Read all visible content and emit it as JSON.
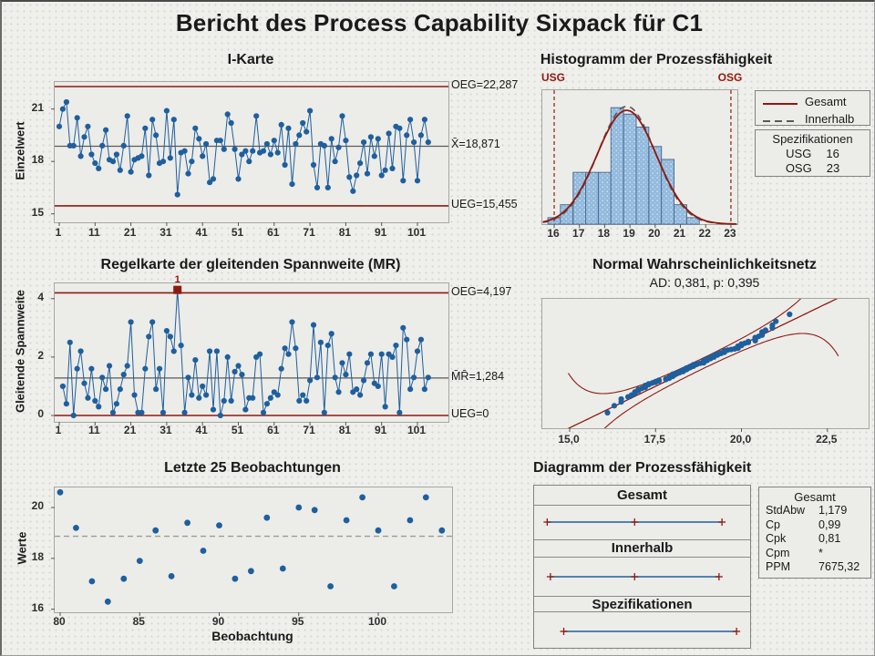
{
  "title": "Bericht des Process Capability Sixpack für C1",
  "colors": {
    "limit_red": "#8e1a0f",
    "marker_blue": "#1e5f9e",
    "bar_fill": "#93badd",
    "bar_edge": "#4a6d94",
    "center_gray": "#5a5a5a",
    "dash_gray": "#9a9a98",
    "within_gray": "#595959"
  },
  "chart_data": [
    {
      "id": "i_chart",
      "type": "line",
      "title": "I-Karte",
      "ylabel": "Einzelwert",
      "yticks": [
        15,
        18,
        21
      ],
      "xticks": [
        1,
        11,
        21,
        31,
        41,
        51,
        61,
        71,
        81,
        91,
        101
      ],
      "ylim": [
        14.5,
        22.6
      ],
      "center": 18.871,
      "ucl": 22.287,
      "lcl": 15.455,
      "ucl_label": "OEG=22,287",
      "mean_label": "X̄=18,871",
      "lcl_label": "UEG=15,455",
      "values": [
        20.0,
        21.0,
        21.4,
        18.9,
        18.9,
        20.5,
        18.3,
        19.4,
        20.0,
        18.4,
        17.9,
        17.6,
        18.9,
        19.8,
        18.1,
        18.0,
        18.4,
        17.5,
        18.9,
        20.6,
        17.4,
        18.1,
        18.2,
        18.3,
        19.9,
        17.2,
        20.4,
        19.5,
        17.9,
        18.0,
        20.9,
        18.2,
        20.4,
        16.1,
        18.5,
        18.6,
        17.3,
        18.0,
        19.9,
        19.3,
        18.3,
        19.0,
        16.8,
        17.0,
        19.2,
        19.2,
        18.7,
        20.7,
        20.2,
        18.7,
        17.0,
        18.4,
        18.6,
        18.0,
        18.6,
        20.6,
        18.5,
        18.6,
        19.0,
        18.4,
        19.2,
        18.5,
        20.1,
        17.8,
        19.9,
        16.7,
        19.0,
        19.5,
        20.2,
        19.7,
        20.9,
        17.8,
        16.5,
        19.0,
        18.9,
        16.5,
        19.3,
        18.0,
        18.8,
        20.6,
        19.2,
        17.1,
        16.3,
        17.2,
        17.9,
        19.1,
        17.3,
        19.4,
        18.3,
        19.3,
        17.2,
        17.5,
        19.6,
        17.6,
        20.0,
        19.9,
        16.9,
        19.5,
        20.4,
        19.1,
        16.9,
        19.5,
        20.4,
        19.1
      ]
    },
    {
      "id": "histogram",
      "type": "bar",
      "title": "Histogramm der Prozessfähigkeit",
      "bin_centers": [
        16,
        16.5,
        17,
        17.5,
        18,
        18.5,
        19,
        19.5,
        20,
        20.5,
        21,
        21.5
      ],
      "bin_width": 0.5,
      "counts": [
        1,
        3,
        8,
        8,
        8,
        18,
        17,
        15,
        12,
        10,
        3,
        1
      ],
      "n": 104,
      "xticks": [
        16,
        17,
        18,
        19,
        20,
        21,
        22,
        23
      ],
      "usg": 16,
      "osg": 23,
      "usg_label": "USG",
      "osg_label": "OSG",
      "overall_mean": 18.871,
      "overall_sd": 1.179,
      "within_sd": 1.139,
      "legend": {
        "overall": "Gesamt",
        "within": "Innerhalb"
      },
      "spec_box": {
        "title": "Spezifikationen",
        "rows": [
          {
            "label": "USG",
            "value": "16"
          },
          {
            "label": "OSG",
            "value": "23"
          }
        ]
      }
    },
    {
      "id": "mr_chart",
      "type": "line",
      "title": "Regelkarte der gleitenden Spannweite (MR)",
      "ylabel": "Gleitende Spannweite",
      "yticks": [
        0,
        2,
        4
      ],
      "xticks": [
        1,
        11,
        21,
        31,
        41,
        51,
        61,
        71,
        81,
        91,
        101
      ],
      "ylim": [
        -0.3,
        4.55
      ],
      "center": 1.284,
      "ucl": 4.197,
      "lcl": 0,
      "ucl_label": "OEG=4,197",
      "mean_label": "M̄R̄=1,284",
      "lcl_label": "UEG=0",
      "note": "moving ranges |x(i)-x(i-1)| of i_chart values",
      "flagged_obs": 34,
      "flag_label": "1"
    },
    {
      "id": "prob_plot",
      "type": "scatter",
      "title": "Normal Wahrscheinlichkeitsnetz",
      "subtitle": "AD: 0,381, p: 0,395",
      "ad": "0,381",
      "p": "0,395",
      "xticks": [
        "15,0",
        "17,5",
        "20,0",
        "22,5"
      ],
      "xtick_values": [
        15.0,
        17.5,
        20.0,
        22.5
      ],
      "mean": 18.871,
      "sd": 1.179,
      "note": "points are sorted i_chart values vs normal quantiles, with fit line and 95% bands"
    },
    {
      "id": "last25",
      "type": "scatter",
      "title": "Letzte 25 Beobachtungen",
      "ylabel": "Werte",
      "xlabel": "Beobachtung",
      "yticks": [
        16,
        18,
        20
      ],
      "xticks": [
        80,
        85,
        90,
        95,
        100
      ],
      "start_obs": 80,
      "mean_line": 18.871,
      "values": [
        20.6,
        19.2,
        17.1,
        16.3,
        17.2,
        17.9,
        19.1,
        17.3,
        19.4,
        18.3,
        19.3,
        17.2,
        17.5,
        19.6,
        17.6,
        20.0,
        19.9,
        16.9,
        19.5,
        20.4,
        19.1,
        16.9,
        19.5,
        20.4,
        19.1
      ]
    },
    {
      "id": "capability",
      "type": "table",
      "title": "Diagramm der Prozessfähigkeit",
      "axis_domain": [
        14.8,
        23.55
      ],
      "sections": [
        {
          "label": "Gesamt",
          "lo": 15.33,
          "mid": 18.871,
          "hi": 22.41
        },
        {
          "label": "Innerhalb",
          "lo": 15.46,
          "mid": 18.871,
          "hi": 22.29
        },
        {
          "label": "Spezifikationen",
          "lo": 16,
          "mid": null,
          "hi": 23
        }
      ],
      "stats": {
        "header": "Gesamt",
        "rows": [
          {
            "label": "StdAbw",
            "value": "1,179"
          },
          {
            "label": "Cp",
            "value": "0,99"
          },
          {
            "label": "Cpk",
            "value": "0,81"
          },
          {
            "label": "Cpm",
            "value": "*"
          },
          {
            "label": "PPM",
            "value": "7675,32"
          }
        ]
      }
    }
  ]
}
